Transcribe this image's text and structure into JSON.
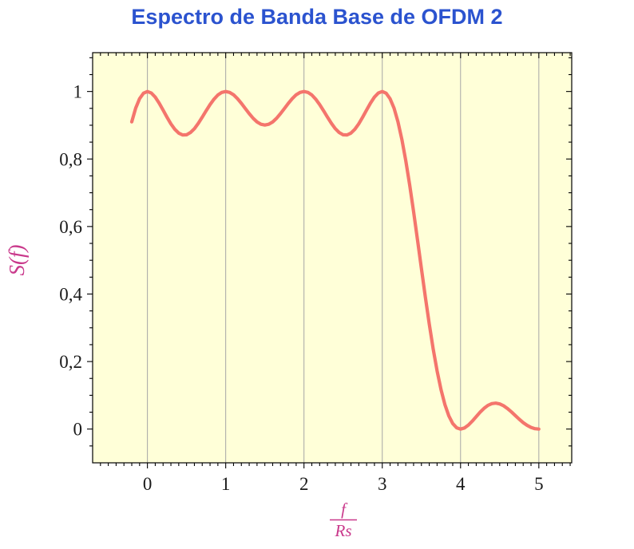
{
  "title": {
    "text": "Espectro de Banda Base de OFDM 2"
  },
  "style": {
    "title_color": "#2b53cf",
    "plot_bg": "#ffffd8",
    "grid_color": "#a6a6a6",
    "axis_color": "#000000",
    "tick_label_color": "#1a1a1a",
    "curve_color": "#f4756c",
    "math_label_color": "#c9388b"
  },
  "chart_data": {
    "type": "line",
    "title": "Espectro de Banda Base de OFDM 2",
    "xlabel": "f/Rs",
    "xlabel_numerator": "f",
    "xlabel_denominator": "Rs",
    "ylabel": "S(f)",
    "xlim": [
      -0.7,
      5.42
    ],
    "ylim": [
      -0.1,
      1.115
    ],
    "x_ticks": [
      0,
      1,
      2,
      3,
      4,
      5
    ],
    "x_tick_labels": [
      "0",
      "1",
      "2",
      "3",
      "4",
      "5"
    ],
    "y_ticks": [
      0,
      0.2,
      0.4,
      0.6,
      0.8,
      1
    ],
    "y_tick_labels": [
      "0",
      "0,2",
      "0,4",
      "0,6",
      "0,8",
      "1"
    ],
    "x_minor_step": 0.1,
    "y_minor_step": 0.05,
    "grid": "vertical major gridlines only",
    "legend": "none",
    "series": [
      {
        "name": "S(f)",
        "x": [
          -0.2,
          -0.15,
          -0.1,
          -0.05,
          0,
          0.05,
          0.1,
          0.15,
          0.2,
          0.25,
          0.3,
          0.35,
          0.4,
          0.45,
          0.5,
          0.55,
          0.6,
          0.65,
          0.7,
          0.75,
          0.8,
          0.85,
          0.9,
          0.95,
          1,
          1.05,
          1.1,
          1.15,
          1.2,
          1.25,
          1.3,
          1.35,
          1.4,
          1.45,
          1.5,
          1.55,
          1.6,
          1.65,
          1.7,
          1.75,
          1.8,
          1.85,
          1.9,
          1.95,
          2,
          2.05,
          2.1,
          2.15,
          2.2,
          2.25,
          2.3,
          2.35,
          2.4,
          2.45,
          2.5,
          2.55,
          2.6,
          2.65,
          2.7,
          2.75,
          2.8,
          2.85,
          2.9,
          2.95,
          3,
          3.05,
          3.1,
          3.15,
          3.2,
          3.25,
          3.3,
          3.35,
          3.4,
          3.45,
          3.5,
          3.55,
          3.6,
          3.65,
          3.7,
          3.75,
          3.8,
          3.85,
          3.9,
          3.95,
          4,
          4.05,
          4.1,
          4.15,
          4.2,
          4.25,
          4.3,
          4.35,
          4.4,
          4.45,
          4.5,
          4.55,
          4.6,
          4.65,
          4.7,
          4.75,
          4.8,
          4.85,
          4.9,
          4.95,
          5
        ],
        "y": [
          0.9101,
          0.9505,
          0.9787,
          0.9949,
          1,
          0.9955,
          0.9833,
          0.9657,
          0.9451,
          0.9239,
          0.9042,
          0.888,
          0.8767,
          0.8712,
          0.8718,
          0.8783,
          0.89,
          0.9057,
          0.9239,
          0.9431,
          0.9614,
          0.9773,
          0.9897,
          0.9972,
          1,
          0.9974,
          0.9902,
          0.9789,
          0.9649,
          0.9496,
          0.9343,
          0.9207,
          0.9099,
          0.903,
          0.9006,
          0.903,
          0.9099,
          0.9207,
          0.9343,
          0.9496,
          0.9649,
          0.9789,
          0.9902,
          0.9974,
          1,
          0.9972,
          0.9897,
          0.9773,
          0.9614,
          0.9431,
          0.9239,
          0.9057,
          0.89,
          0.8783,
          0.8718,
          0.8712,
          0.8767,
          0.888,
          0.9042,
          0.9239,
          0.9451,
          0.9657,
          0.9833,
          0.9955,
          1,
          0.9949,
          0.9787,
          0.9505,
          0.9101,
          0.8578,
          0.7947,
          0.7225,
          0.6434,
          0.5599,
          0.4748,
          0.3909,
          0.311,
          0.2374,
          0.1722,
          0.1169,
          0.0724,
          0.039,
          0.0164,
          0.0038,
          0,
          0.0033,
          0.0118,
          0.0236,
          0.0369,
          0.05,
          0.0615,
          0.0701,
          0.0753,
          0.0768,
          0.0745,
          0.069,
          0.0608,
          0.0508,
          0.0399,
          0.0291,
          0.0192,
          0.011,
          0.0049,
          0.0012,
          0
        ]
      }
    ]
  }
}
